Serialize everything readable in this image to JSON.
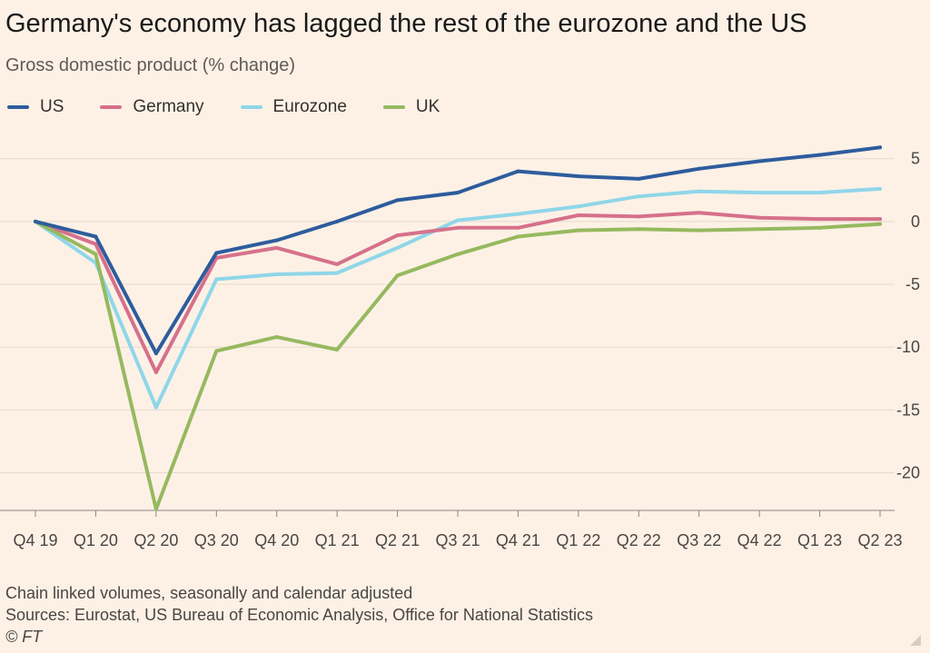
{
  "chart_data": {
    "type": "line",
    "title": "Germany's economy has lagged the rest of the eurozone and the US",
    "subtitle": "Gross domestic product (% change)",
    "categories": [
      "Q4 19",
      "Q1 20",
      "Q2 20",
      "Q3 20",
      "Q4 20",
      "Q1 21",
      "Q2 21",
      "Q3 21",
      "Q4 21",
      "Q1 22",
      "Q2 22",
      "Q3 22",
      "Q4 22",
      "Q1 23",
      "Q2 23"
    ],
    "series": [
      {
        "name": "US",
        "color": "#2e5c9d",
        "values": [
          0,
          -1.2,
          -10.5,
          -2.5,
          -1.5,
          0,
          1.7,
          2.3,
          4.0,
          3.6,
          3.4,
          4.2,
          4.8,
          5.3,
          5.9
        ]
      },
      {
        "name": "Germany",
        "color": "#d6708b",
        "values": [
          0,
          -1.8,
          -12.0,
          -2.9,
          -2.1,
          -3.4,
          -1.1,
          -0.5,
          -0.5,
          0.5,
          0.4,
          0.7,
          0.3,
          0.2,
          0.2
        ]
      },
      {
        "name": "Eurozone",
        "color": "#8fd6e9",
        "values": [
          0,
          -3.3,
          -14.8,
          -4.6,
          -4.2,
          -4.1,
          -2.1,
          0.1,
          0.6,
          1.2,
          2.0,
          2.4,
          2.3,
          2.3,
          2.6
        ]
      },
      {
        "name": "UK",
        "color": "#96b95f",
        "values": [
          0,
          -2.6,
          -22.9,
          -10.3,
          -9.2,
          -10.2,
          -4.3,
          -2.6,
          -1.2,
          -0.7,
          -0.6,
          -0.7,
          -0.6,
          -0.5,
          -0.2
        ]
      }
    ],
    "yticks": [
      5,
      0,
      -5,
      -10,
      -15,
      -20
    ],
    "ylim": [
      -23,
      6.5
    ],
    "grid": true,
    "legend_placement": "top-left",
    "xlabel": "",
    "ylabel": ""
  },
  "footer": {
    "note": "Chain linked volumes, seasonally and calendar adjusted",
    "sources": "Sources: Eurostat, US Bureau of Economic Analysis, Office for National Statistics",
    "credit": "© FT"
  }
}
